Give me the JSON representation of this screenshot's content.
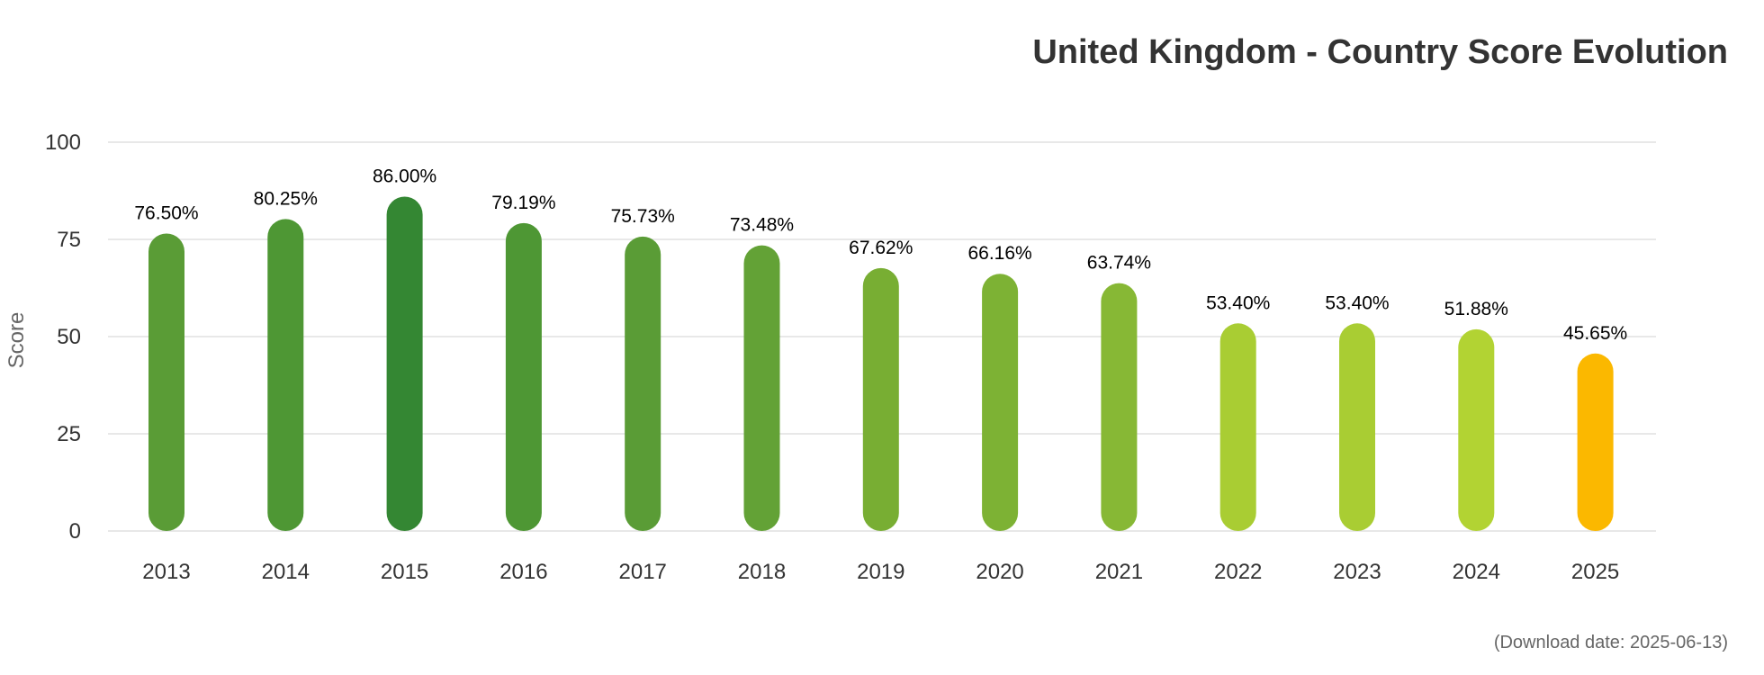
{
  "chart_data": {
    "type": "bar",
    "title": "United Kingdom - Country Score Evolution",
    "xlabel": "",
    "ylabel": "Score",
    "ylim": [
      0,
      100
    ],
    "yticks": [
      0,
      25,
      50,
      75,
      100
    ],
    "grid": true,
    "legend": "none",
    "categories": [
      "2013",
      "2014",
      "2015",
      "2016",
      "2017",
      "2018",
      "2019",
      "2020",
      "2021",
      "2022",
      "2023",
      "2024",
      "2025"
    ],
    "values": [
      76.5,
      80.25,
      86.0,
      79.19,
      75.73,
      73.48,
      67.62,
      66.16,
      63.74,
      53.4,
      53.4,
      51.88,
      45.65
    ],
    "data_labels": [
      "76.50%",
      "80.25%",
      "86.00%",
      "79.19%",
      "75.73%",
      "73.48%",
      "67.62%",
      "66.16%",
      "63.74%",
      "53.40%",
      "53.40%",
      "51.88%",
      "45.65%"
    ],
    "colors": [
      "#5a9c36",
      "#4e9734",
      "#348733",
      "#4e9734",
      "#5a9c36",
      "#63a236",
      "#78ae33",
      "#7db234",
      "#87b835",
      "#a9cd33",
      "#a9cd33",
      "#b2d333",
      "#fbb800"
    ],
    "footnote": "(Download date: 2025-06-13)"
  }
}
